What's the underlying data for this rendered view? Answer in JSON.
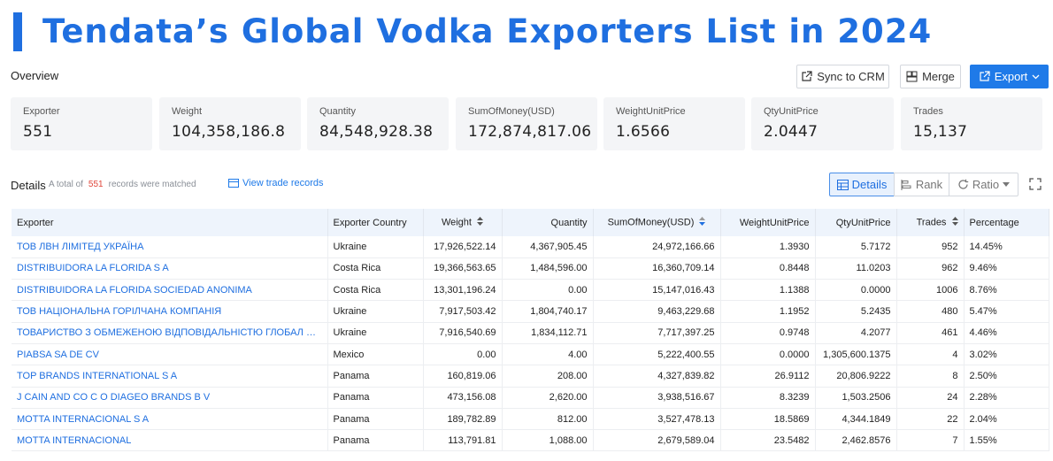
{
  "title": "Tendata’s Global Vodka Exporters List in 2024",
  "overview_label": "Overview",
  "toolbar": {
    "sync_label": "Sync to CRM",
    "merge_label": "Merge",
    "export_label": "Export"
  },
  "stats": [
    {
      "label": "Exporter",
      "value": "551"
    },
    {
      "label": "Weight",
      "value": "104,358,186.8"
    },
    {
      "label": "Quantity",
      "value": "84,548,928.38"
    },
    {
      "label": "SumOfMoney(USD)",
      "value": "172,874,817.06"
    },
    {
      "label": "WeightUnitPrice",
      "value": "1.6566"
    },
    {
      "label": "QtyUnitPrice",
      "value": "2.0447"
    },
    {
      "label": "Trades",
      "value": "15,137"
    }
  ],
  "details": {
    "label": "Details",
    "meta_prefix": "A total of",
    "count": "551",
    "meta_suffix": "records were matched",
    "view_trade_label": "View trade records",
    "views": {
      "details": "Details",
      "rank": "Rank",
      "ratio": "Ratio"
    }
  },
  "table": {
    "columns": [
      "Exporter",
      "Exporter Country",
      "Weight",
      "Quantity",
      "SumOfMoney(USD)",
      "WeightUnitPrice",
      "QtyUnitPrice",
      "Trades",
      "Percentage"
    ],
    "rows": [
      [
        "ТОВ ЛВН ЛІМІТЕД УКРАЇНА",
        "Ukraine",
        "17,926,522.14",
        "4,367,905.45",
        "24,972,166.66",
        "1.3930",
        "5.7172",
        "952",
        "14.45%"
      ],
      [
        "DISTRIBUIDORA LA FLORIDA S A",
        "Costa Rica",
        "19,366,563.65",
        "1,484,596.00",
        "16,360,709.14",
        "0.8448",
        "11.0203",
        "962",
        "9.46%"
      ],
      [
        "DISTRIBUIDORA LA FLORIDA SOCIEDAD ANONIMA",
        "Costa Rica",
        "13,301,196.24",
        "0.00",
        "15,147,016.43",
        "1.1388",
        "0.0000",
        "1006",
        "8.76%"
      ],
      [
        "ТОВ НАЦІОНАЛЬНА ГОРІЛЧАНА КОМПАНІЯ",
        "Ukraine",
        "7,917,503.42",
        "1,804,740.17",
        "9,463,229.68",
        "1.1952",
        "5.2435",
        "480",
        "5.47%"
      ],
      [
        "ТОВАРИСТВО З ОБМЕЖЕНОЮ ВІДПОВІДАЛЬНІСТЮ ГЛОБАЛ СПІРІТС Г...",
        "Ukraine",
        "7,916,540.69",
        "1,834,112.71",
        "7,717,397.25",
        "0.9748",
        "4.2077",
        "461",
        "4.46%"
      ],
      [
        "PIABSA SA DE CV",
        "Mexico",
        "0.00",
        "4.00",
        "5,222,400.55",
        "0.0000",
        "1,305,600.1375",
        "4",
        "3.02%"
      ],
      [
        "TOP BRANDS INTERNATIONAL S A",
        "Panama",
        "160,819.06",
        "208.00",
        "4,327,839.82",
        "26.9112",
        "20,806.9222",
        "8",
        "2.50%"
      ],
      [
        "J CAIN AND CO C O DIAGEO BRANDS B V",
        "Panama",
        "473,156.08",
        "2,620.00",
        "3,938,516.67",
        "8.3239",
        "1,503.2506",
        "24",
        "2.28%"
      ],
      [
        "MOTTA INTERNACIONAL S A",
        "Panama",
        "189,782.89",
        "812.00",
        "3,527,478.13",
        "18.5869",
        "4,344.1849",
        "22",
        "2.04%"
      ],
      [
        "MOTTA INTERNACIONAL",
        "Panama",
        "113,791.81",
        "1,088.00",
        "2,679,589.04",
        "23.5482",
        "2,462.8576",
        "7",
        "1.55%"
      ]
    ]
  },
  "colors": {
    "accent": "#1f6fe0",
    "header_bg": "#eef4fc",
    "card_bg": "#f4f5f7",
    "count": "#e0463a"
  }
}
